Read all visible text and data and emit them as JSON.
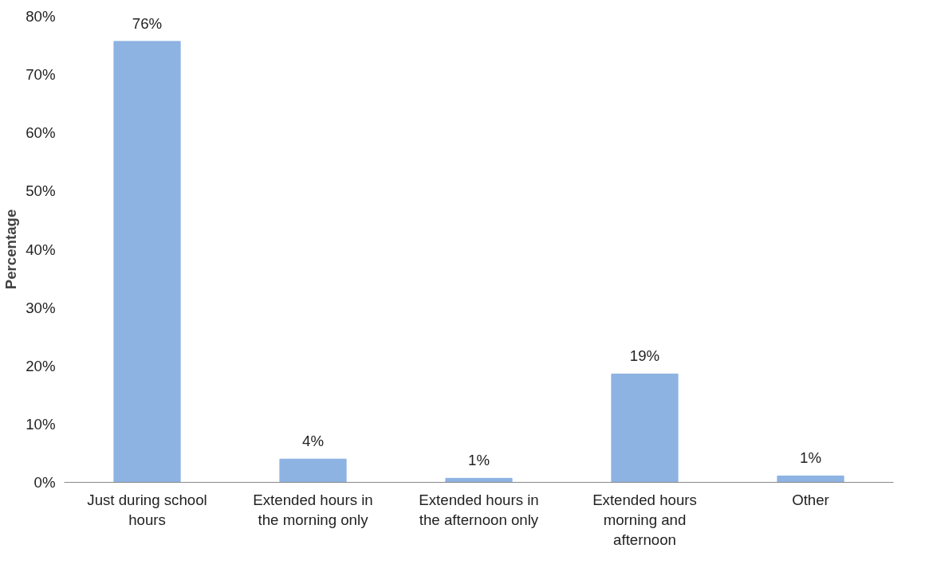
{
  "chart_data": {
    "type": "bar",
    "ylabel": "Percentage",
    "categories": [
      "Just during school hours",
      "Extended hours in the morning only",
      "Extended hours in the afternoon only",
      "Extended hours morning and afternoon",
      "Other"
    ],
    "values": [
      75.7,
      4.0,
      0.7,
      18.6,
      1.1
    ],
    "value_labels": [
      "76%",
      "4%",
      "1%",
      "19%",
      "1%"
    ],
    "color": "#8db3e2",
    "ylim": [
      0,
      80
    ],
    "yticks": [
      {
        "value": 0,
        "label": "0%"
      },
      {
        "value": 10,
        "label": "10%"
      },
      {
        "value": 20,
        "label": "20%"
      },
      {
        "value": 30,
        "label": "30%"
      },
      {
        "value": 40,
        "label": "40%"
      },
      {
        "value": 50,
        "label": "50%"
      },
      {
        "value": 60,
        "label": "60%"
      },
      {
        "value": 70,
        "label": "70%"
      },
      {
        "value": 80,
        "label": "80%"
      }
    ],
    "grid": false
  }
}
